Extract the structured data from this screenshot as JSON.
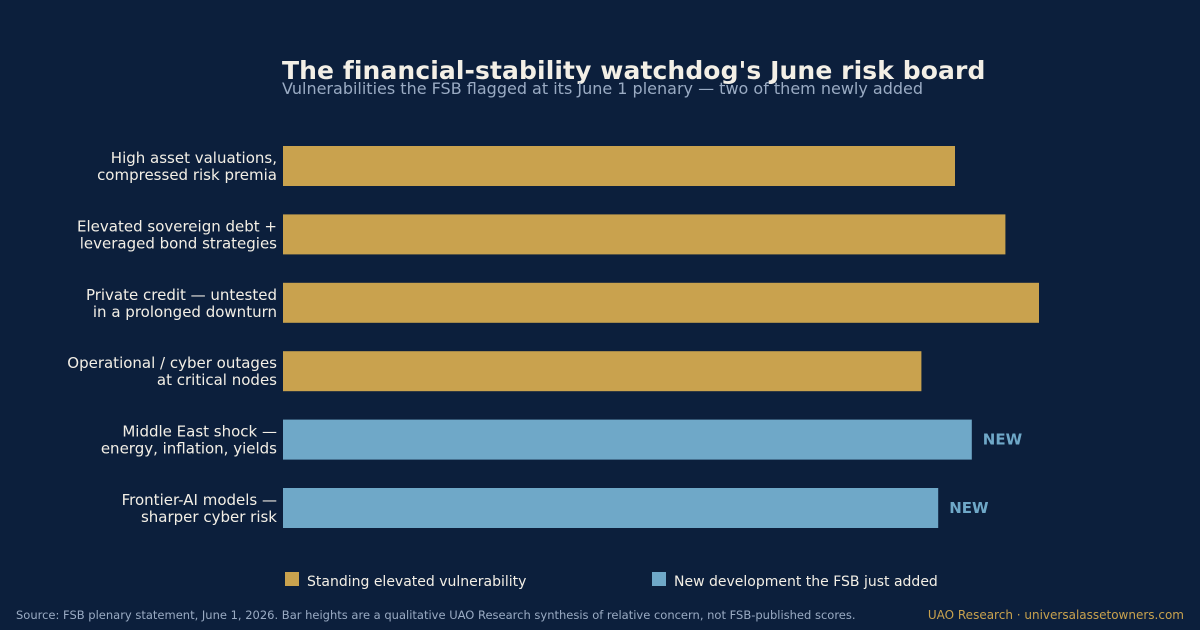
{
  "header": {
    "title": "The financial-stability watchdog's June risk board",
    "subtitle": "Vulnerabilities the FSB flagged at its June 1 plenary — two of them newly added"
  },
  "chart_data": {
    "type": "bar",
    "orientation": "horizontal",
    "categories": [
      [
        "High asset valuations,",
        "compressed risk premia"
      ],
      [
        "Elevated sovereign debt +",
        "leveraged bond strategies"
      ],
      [
        "Private credit — untested",
        "in a prolonged downturn"
      ],
      [
        "Operational / cyber outages",
        "at critical nodes"
      ],
      [
        "Middle East shock —",
        "energy, inflation, yields"
      ],
      [
        "Frontier-AI models —",
        "sharper cyber risk"
      ]
    ],
    "values": [
      8.0,
      8.6,
      9.0,
      7.6,
      8.2,
      7.8
    ],
    "groups": [
      "standing",
      "standing",
      "standing",
      "standing",
      "new",
      "new"
    ],
    "bar_annotations": [
      "",
      "",
      "",
      "",
      "NEW",
      "NEW"
    ],
    "xlim": [
      0,
      10
    ],
    "grid": false,
    "legend_position": "bottom",
    "colors": {
      "standing": "#c9a24e",
      "new": "#6fa8c8"
    }
  },
  "legend": {
    "standing_label": "Standing elevated vulnerability",
    "new_label": "New development the FSB just added"
  },
  "footer": {
    "source": "Source: FSB plenary statement, June 1, 2026. Bar heights are a qualitative UAO Research synthesis of relative concern, not FSB-published scores.",
    "credit": "UAO Research · universalassetowners.com"
  },
  "theme": {
    "background": "#0c1f3c",
    "text": "#f3efe6",
    "muted": "#9aabc3"
  }
}
